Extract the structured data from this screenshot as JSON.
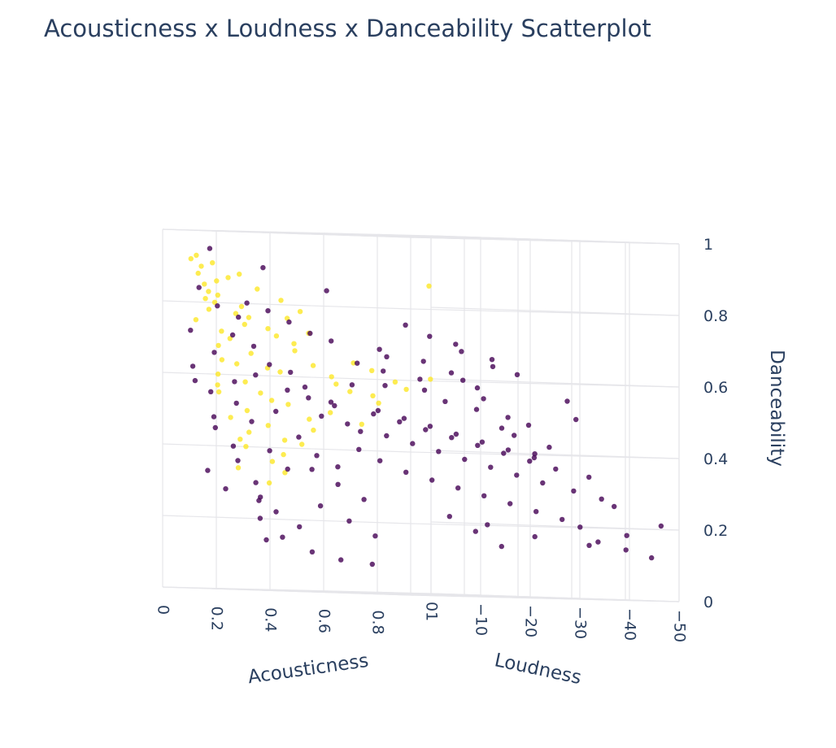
{
  "chart_data": {
    "type": "scatter",
    "title": "Acousticness x Loudness x Danceability Scatterplot",
    "projection": "3d",
    "axes": {
      "x": {
        "label": "Acousticness",
        "range": [
          0,
          1
        ],
        "ticks": [
          0,
          0.2,
          0.4,
          0.6,
          0.8,
          1
        ],
        "tick_labels": [
          "0",
          "0.2",
          "0.4",
          "0.6",
          "0.8",
          "1"
        ]
      },
      "y": {
        "label": "Loudness",
        "range": [
          0,
          -50
        ],
        "ticks": [
          0,
          -10,
          -20,
          -30,
          -40,
          -50
        ],
        "tick_labels": [
          "0",
          "−10",
          "−20",
          "−30",
          "−40",
          "−50"
        ]
      },
      "z": {
        "label": "Danceability",
        "range": [
          0,
          1
        ],
        "ticks": [
          0,
          0.2,
          0.4,
          0.6,
          0.8,
          1
        ],
        "tick_labels": [
          "0",
          "0.2",
          "0.4",
          "0.6",
          "0.8",
          "1"
        ]
      }
    },
    "grid": true,
    "colors": {
      "low": "#440154",
      "high": "#fde725"
    },
    "marker_opacity": 0.8,
    "series": [
      {
        "color_group": "high",
        "points": [
          [
            0.05,
            -3,
            0.92
          ],
          [
            0.07,
            -4,
            0.9
          ],
          [
            0.04,
            -5,
            0.88
          ],
          [
            0.1,
            -3,
            0.85
          ],
          [
            0.06,
            -6,
            0.83
          ],
          [
            0.12,
            -4,
            0.8
          ],
          [
            0.08,
            -5,
            0.78
          ],
          [
            0.15,
            -3,
            0.82
          ],
          [
            0.05,
            -4,
            0.75
          ],
          [
            0.18,
            -5,
            0.77
          ],
          [
            0.22,
            -4,
            0.79
          ],
          [
            0.09,
            -7,
            0.72
          ],
          [
            0.25,
            -3,
            0.74
          ],
          [
            0.14,
            -6,
            0.7
          ],
          [
            0.3,
            -5,
            0.73
          ],
          [
            0.06,
            -8,
            0.68
          ],
          [
            0.2,
            -7,
            0.66
          ],
          [
            0.35,
            -4,
            0.71
          ],
          [
            0.11,
            -6,
            0.64
          ],
          [
            0.28,
            -6,
            0.62
          ],
          [
            0.04,
            -9,
            0.6
          ],
          [
            0.16,
            -8,
            0.58
          ],
          [
            0.4,
            -5,
            0.67
          ],
          [
            0.08,
            -7,
            0.55
          ],
          [
            0.24,
            -9,
            0.53
          ],
          [
            0.13,
            -10,
            0.5
          ],
          [
            0.05,
            -11,
            0.48
          ],
          [
            0.32,
            -8,
            0.52
          ],
          [
            0.45,
            -6,
            0.63
          ],
          [
            0.1,
            -12,
            0.44
          ],
          [
            0.19,
            -11,
            0.46
          ],
          [
            0.07,
            -13,
            0.4
          ],
          [
            0.27,
            -10,
            0.42
          ],
          [
            0.5,
            -7,
            0.6
          ],
          [
            0.15,
            -14,
            0.36
          ],
          [
            0.06,
            -12,
            0.34
          ],
          [
            0.38,
            -9,
            0.48
          ],
          [
            0.12,
            -15,
            0.3
          ],
          [
            0.55,
            -8,
            0.56
          ],
          [
            0.21,
            -13,
            0.38
          ],
          [
            0.09,
            -6,
            0.86
          ],
          [
            0.17,
            -4,
            0.87
          ],
          [
            0.26,
            -5,
            0.84
          ],
          [
            0.33,
            -6,
            0.81
          ],
          [
            0.42,
            -5,
            0.78
          ],
          [
            0.03,
            -7,
            0.81
          ],
          [
            0.6,
            -6,
            0.64
          ],
          [
            0.48,
            -9,
            0.58
          ],
          [
            0.36,
            -7,
            0.69
          ],
          [
            0.13,
            -3,
            0.91
          ],
          [
            0.21,
            -6,
            0.76
          ],
          [
            0.29,
            -8,
            0.61
          ],
          [
            0.44,
            -10,
            0.5
          ],
          [
            0.02,
            -10,
            0.57
          ],
          [
            0.58,
            -11,
            0.55
          ],
          [
            0.65,
            -7,
            0.62
          ],
          [
            0.7,
            -9,
            0.59
          ],
          [
            0.11,
            -9,
            0.63
          ],
          [
            0.52,
            -12,
            0.47
          ],
          [
            0.34,
            -12,
            0.45
          ],
          [
            0.18,
            -10,
            0.55
          ],
          [
            0.07,
            -3,
            0.93
          ],
          [
            0.23,
            -3,
            0.88
          ],
          [
            0.39,
            -4,
            0.76
          ],
          [
            0.47,
            -4,
            0.72
          ],
          [
            0.76,
            -8,
            0.57
          ],
          [
            0.62,
            -10,
            0.53
          ],
          [
            0.03,
            -14,
            0.42
          ],
          [
            0.16,
            -16,
            0.33
          ],
          [
            0.85,
            -8,
            0.6
          ],
          [
            0.9,
            -5,
            0.86
          ],
          [
            0.26,
            -14,
            0.41
          ]
        ]
      },
      {
        "color_group": "low",
        "points": [
          [
            0.02,
            -5,
            0.62
          ],
          [
            0.05,
            -7,
            0.55
          ],
          [
            0.08,
            -6,
            0.48
          ],
          [
            0.03,
            -9,
            0.45
          ],
          [
            0.1,
            -5,
            0.66
          ],
          [
            0.06,
            -11,
            0.4
          ],
          [
            0.12,
            -8,
            0.58
          ],
          [
            0.04,
            -13,
            0.36
          ],
          [
            0.15,
            -6,
            0.71
          ],
          [
            0.09,
            -10,
            0.52
          ],
          [
            0.18,
            -9,
            0.6
          ],
          [
            0.07,
            -15,
            0.3
          ],
          [
            0.21,
            -7,
            0.68
          ],
          [
            0.11,
            -12,
            0.47
          ],
          [
            0.25,
            -8,
            0.63
          ],
          [
            0.14,
            -14,
            0.39
          ],
          [
            0.28,
            -10,
            0.56
          ],
          [
            0.05,
            -17,
            0.26
          ],
          [
            0.31,
            -9,
            0.61
          ],
          [
            0.17,
            -16,
            0.34
          ],
          [
            0.34,
            -11,
            0.54
          ],
          [
            0.2,
            -12,
            0.5
          ],
          [
            0.37,
            -12,
            0.49
          ],
          [
            0.23,
            -15,
            0.43
          ],
          [
            0.4,
            -13,
            0.52
          ],
          [
            0.26,
            -17,
            0.38
          ],
          [
            0.43,
            -14,
            0.47
          ],
          [
            0.29,
            -13,
            0.57
          ],
          [
            0.46,
            -15,
            0.45
          ],
          [
            0.32,
            -18,
            0.35
          ],
          [
            0.49,
            -16,
            0.5
          ],
          [
            0.35,
            -15,
            0.53
          ],
          [
            0.52,
            -17,
            0.44
          ],
          [
            0.38,
            -19,
            0.4
          ],
          [
            0.55,
            -18,
            0.48
          ],
          [
            0.41,
            -16,
            0.58
          ],
          [
            0.58,
            -19,
            0.42
          ],
          [
            0.44,
            -20,
            0.37
          ],
          [
            0.61,
            -20,
            0.46
          ],
          [
            0.47,
            -18,
            0.51
          ],
          [
            0.64,
            -21,
            0.4
          ],
          [
            0.5,
            -22,
            0.34
          ],
          [
            0.67,
            -22,
            0.44
          ],
          [
            0.53,
            -20,
            0.49
          ],
          [
            0.7,
            -23,
            0.38
          ],
          [
            0.56,
            -24,
            0.32
          ],
          [
            0.73,
            -24,
            0.42
          ],
          [
            0.59,
            -22,
            0.47
          ],
          [
            0.76,
            -25,
            0.36
          ],
          [
            0.62,
            -26,
            0.3
          ],
          [
            0.79,
            -26,
            0.4
          ],
          [
            0.65,
            -24,
            0.45
          ],
          [
            0.82,
            -27,
            0.34
          ],
          [
            0.68,
            -28,
            0.28
          ],
          [
            0.85,
            -28,
            0.38
          ],
          [
            0.71,
            -26,
            0.43
          ],
          [
            0.88,
            -29,
            0.32
          ],
          [
            0.74,
            -30,
            0.26
          ],
          [
            0.91,
            -30,
            0.36
          ],
          [
            0.77,
            -28,
            0.41
          ],
          [
            0.94,
            -32,
            0.3
          ],
          [
            0.8,
            -32,
            0.24
          ],
          [
            0.96,
            -34,
            0.34
          ],
          [
            0.83,
            -30,
            0.39
          ],
          [
            0.97,
            -36,
            0.28
          ],
          [
            0.86,
            -34,
            0.22
          ],
          [
            0.98,
            -38,
            0.26
          ],
          [
            0.89,
            -36,
            0.2
          ],
          [
            0.99,
            -40,
            0.18
          ],
          [
            0.92,
            -38,
            0.16
          ],
          [
            0.95,
            -42,
            0.14
          ],
          [
            0.99,
            -45,
            0.12
          ],
          [
            0.8,
            -20,
            0.52
          ],
          [
            0.84,
            -18,
            0.58
          ],
          [
            0.88,
            -22,
            0.5
          ],
          [
            0.9,
            -16,
            0.55
          ],
          [
            0.92,
            -24,
            0.48
          ],
          [
            0.86,
            -14,
            0.6
          ],
          [
            0.94,
            -20,
            0.45
          ],
          [
            0.78,
            -16,
            0.62
          ],
          [
            0.96,
            -26,
            0.42
          ],
          [
            0.82,
            -24,
            0.47
          ],
          [
            0.98,
            -22,
            0.4
          ],
          [
            0.75,
            -12,
            0.65
          ],
          [
            0.7,
            -14,
            0.6
          ],
          [
            0.65,
            -10,
            0.66
          ],
          [
            0.72,
            -18,
            0.54
          ],
          [
            0.68,
            -16,
            0.57
          ],
          [
            0.6,
            -12,
            0.62
          ],
          [
            0.57,
            -14,
            0.58
          ],
          [
            0.66,
            -8,
            0.68
          ],
          [
            0.54,
            -10,
            0.64
          ],
          [
            0.48,
            -8,
            0.7
          ],
          [
            0.42,
            -7,
            0.72
          ],
          [
            0.36,
            -6,
            0.75
          ],
          [
            0.3,
            -5,
            0.78
          ],
          [
            0.24,
            -4,
            0.8
          ],
          [
            0.19,
            -5,
            0.76
          ],
          [
            0.13,
            -4,
            0.79
          ],
          [
            0.08,
            -3,
            0.84
          ],
          [
            0.03,
            -4,
            0.72
          ],
          [
            0.01,
            -6,
            0.58
          ],
          [
            0.09,
            -18,
            0.22
          ],
          [
            0.14,
            -20,
            0.18
          ],
          [
            0.04,
            -22,
            0.15
          ],
          [
            0.2,
            -21,
            0.24
          ],
          [
            0.27,
            -23,
            0.2
          ],
          [
            0.33,
            -25,
            0.16
          ],
          [
            0.45,
            -11,
            0.3
          ],
          [
            0.51,
            -13,
            0.26
          ],
          [
            0.39,
            -9,
            0.34
          ],
          [
            0.57,
            -27,
            0.22
          ],
          [
            0.63,
            -29,
            0.18
          ],
          [
            0.69,
            -31,
            0.14
          ],
          [
            0.12,
            -3,
            0.95
          ],
          [
            0.3,
            -4,
            0.9
          ],
          [
            0.5,
            -6,
            0.84
          ],
          [
            0.72,
            -10,
            0.75
          ],
          [
            0.87,
            -12,
            0.7
          ],
          [
            0.95,
            -15,
            0.66
          ],
          [
            0.97,
            -19,
            0.62
          ],
          [
            0.99,
            -28,
            0.55
          ],
          [
            0.93,
            -33,
            0.5
          ],
          [
            0.81,
            -10,
            0.72
          ],
          [
            0.91,
            -11,
            0.68
          ],
          [
            0.99,
            -13,
            0.64
          ],
          [
            0.02,
            -8,
            0.33
          ],
          [
            0.05,
            -10,
            0.28
          ],
          [
            0.1,
            -14,
            0.25
          ],
          [
            0.16,
            -11,
            0.2
          ],
          [
            0.22,
            -9,
            0.14
          ],
          [
            0.28,
            -15,
            0.11
          ],
          [
            0.35,
            -17,
            0.09
          ],
          [
            0.43,
            -19,
            0.08
          ],
          [
            0.6,
            -33,
            0.2
          ],
          [
            0.74,
            -35,
            0.17
          ],
          [
            0.85,
            -40,
            0.15
          ],
          [
            0.97,
            -48,
            0.21
          ]
        ]
      }
    ]
  }
}
